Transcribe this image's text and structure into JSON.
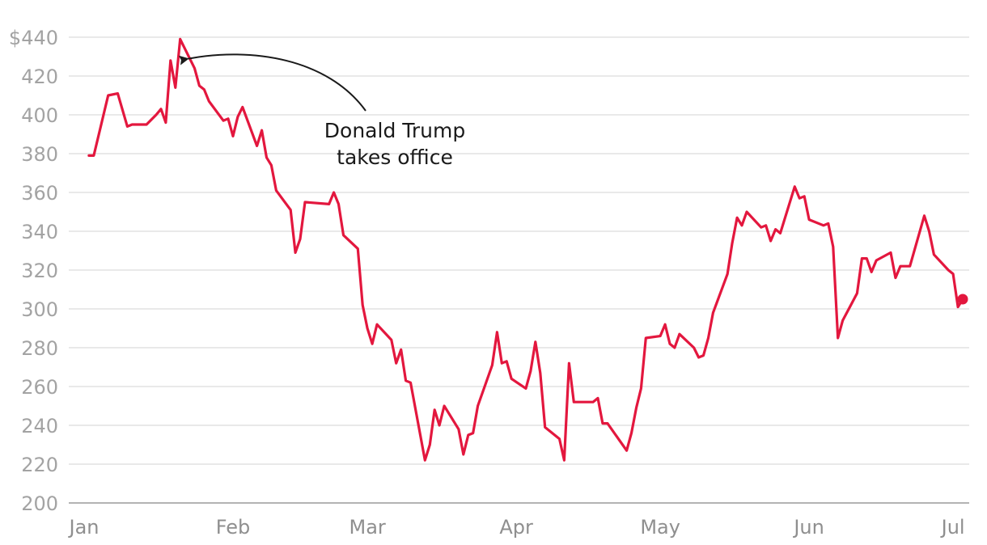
{
  "chart_data": {
    "type": "line",
    "y_tick_labels": [
      "$440",
      "420",
      "400",
      "380",
      "360",
      "340",
      "320",
      "300",
      "280",
      "260",
      "240",
      "220",
      "200"
    ],
    "y_ticks": [
      440,
      420,
      400,
      380,
      360,
      340,
      320,
      300,
      280,
      260,
      240,
      220,
      200
    ],
    "ylim": [
      200,
      440
    ],
    "x_tick_labels": [
      "Jan",
      "Feb",
      "Mar",
      "Apr",
      "May",
      "Jun",
      "Jul"
    ],
    "x_tick_dates": [
      "2025-01-01",
      "2025-02-01",
      "2025-03-01",
      "2025-04-01",
      "2025-05-01",
      "2025-06-01",
      "2025-07-01"
    ],
    "xlim": [
      "2025-01-01",
      "2025-07-03"
    ],
    "grid": true,
    "line_color": "#e3173e",
    "annotation": {
      "lines": [
        "Donald Trump",
        "takes office"
      ],
      "target_date": "2025-01-20",
      "target_value": 431
    },
    "series": [
      {
        "end_marker": true,
        "points": [
          [
            "2025-01-02",
            379
          ],
          [
            "2025-01-03",
            379
          ],
          [
            "2025-01-06",
            410
          ],
          [
            "2025-01-08",
            411
          ],
          [
            "2025-01-10",
            394
          ],
          [
            "2025-01-11",
            395
          ],
          [
            "2025-01-14",
            395
          ],
          [
            "2025-01-16",
            400
          ],
          [
            "2025-01-17",
            403
          ],
          [
            "2025-01-18",
            396
          ],
          [
            "2025-01-19",
            428
          ],
          [
            "2025-01-20",
            414
          ],
          [
            "2025-01-21",
            439
          ],
          [
            "2025-01-24",
            424
          ],
          [
            "2025-01-25",
            415
          ],
          [
            "2025-01-26",
            413
          ],
          [
            "2025-01-27",
            407
          ],
          [
            "2025-01-30",
            397
          ],
          [
            "2025-01-31",
            398
          ],
          [
            "2025-02-01",
            389
          ],
          [
            "2025-02-02",
            399
          ],
          [
            "2025-02-03",
            404
          ],
          [
            "2025-02-06",
            384
          ],
          [
            "2025-02-07",
            392
          ],
          [
            "2025-02-08",
            378
          ],
          [
            "2025-02-09",
            374
          ],
          [
            "2025-02-10",
            361
          ],
          [
            "2025-02-13",
            351
          ],
          [
            "2025-02-14",
            329
          ],
          [
            "2025-02-15",
            336
          ],
          [
            "2025-02-16",
            355
          ],
          [
            "2025-02-21",
            354
          ],
          [
            "2025-02-22",
            360
          ],
          [
            "2025-02-23",
            354
          ],
          [
            "2025-02-24",
            338
          ],
          [
            "2025-02-27",
            331
          ],
          [
            "2025-02-28",
            302
          ],
          [
            "2025-03-01",
            290
          ],
          [
            "2025-03-02",
            282
          ],
          [
            "2025-03-03",
            292
          ],
          [
            "2025-03-06",
            284
          ],
          [
            "2025-03-07",
            272
          ],
          [
            "2025-03-08",
            279
          ],
          [
            "2025-03-09",
            263
          ],
          [
            "2025-03-10",
            262
          ],
          [
            "2025-03-13",
            222
          ],
          [
            "2025-03-14",
            230
          ],
          [
            "2025-03-15",
            248
          ],
          [
            "2025-03-16",
            240
          ],
          [
            "2025-03-17",
            250
          ],
          [
            "2025-03-20",
            238
          ],
          [
            "2025-03-21",
            225
          ],
          [
            "2025-03-22",
            235
          ],
          [
            "2025-03-23",
            236
          ],
          [
            "2025-03-24",
            250
          ],
          [
            "2025-03-27",
            271
          ],
          [
            "2025-03-28",
            288
          ],
          [
            "2025-03-29",
            272
          ],
          [
            "2025-03-30",
            273
          ],
          [
            "2025-03-31",
            264
          ],
          [
            "2025-04-03",
            259
          ],
          [
            "2025-04-04",
            268
          ],
          [
            "2025-04-05",
            283
          ],
          [
            "2025-04-06",
            267
          ],
          [
            "2025-04-07",
            239
          ],
          [
            "2025-04-10",
            233
          ],
          [
            "2025-04-11",
            222
          ],
          [
            "2025-04-12",
            272
          ],
          [
            "2025-04-13",
            252
          ],
          [
            "2025-04-17",
            252
          ],
          [
            "2025-04-18",
            254
          ],
          [
            "2025-04-19",
            241
          ],
          [
            "2025-04-20",
            241
          ],
          [
            "2025-04-24",
            227
          ],
          [
            "2025-04-25",
            236
          ],
          [
            "2025-04-26",
            249
          ],
          [
            "2025-04-27",
            259
          ],
          [
            "2025-04-28",
            285
          ],
          [
            "2025-05-01",
            286
          ],
          [
            "2025-05-02",
            292
          ],
          [
            "2025-05-03",
            282
          ],
          [
            "2025-05-04",
            280
          ],
          [
            "2025-05-05",
            287
          ],
          [
            "2025-05-08",
            280
          ],
          [
            "2025-05-09",
            275
          ],
          [
            "2025-05-10",
            276
          ],
          [
            "2025-05-11",
            285
          ],
          [
            "2025-05-12",
            298
          ],
          [
            "2025-05-15",
            318
          ],
          [
            "2025-05-16",
            334
          ],
          [
            "2025-05-17",
            347
          ],
          [
            "2025-05-18",
            343
          ],
          [
            "2025-05-19",
            350
          ],
          [
            "2025-05-22",
            342
          ],
          [
            "2025-05-23",
            343
          ],
          [
            "2025-05-24",
            335
          ],
          [
            "2025-05-25",
            341
          ],
          [
            "2025-05-26",
            339
          ],
          [
            "2025-05-29",
            363
          ],
          [
            "2025-05-30",
            357
          ],
          [
            "2025-05-31",
            358
          ],
          [
            "2025-06-01",
            346
          ],
          [
            "2025-06-04",
            343
          ],
          [
            "2025-06-05",
            344
          ],
          [
            "2025-06-06",
            332
          ],
          [
            "2025-06-07",
            285
          ],
          [
            "2025-06-08",
            294
          ],
          [
            "2025-06-11",
            308
          ],
          [
            "2025-06-12",
            326
          ],
          [
            "2025-06-13",
            326
          ],
          [
            "2025-06-14",
            319
          ],
          [
            "2025-06-15",
            325
          ],
          [
            "2025-06-18",
            329
          ],
          [
            "2025-06-19",
            316
          ],
          [
            "2025-06-20",
            322
          ],
          [
            "2025-06-22",
            322
          ],
          [
            "2025-06-25",
            348
          ],
          [
            "2025-06-26",
            340
          ],
          [
            "2025-06-27",
            328
          ],
          [
            "2025-06-30",
            320
          ],
          [
            "2025-07-01",
            318
          ],
          [
            "2025-07-02",
            301
          ],
          [
            "2025-07-03",
            305
          ]
        ]
      }
    ]
  }
}
